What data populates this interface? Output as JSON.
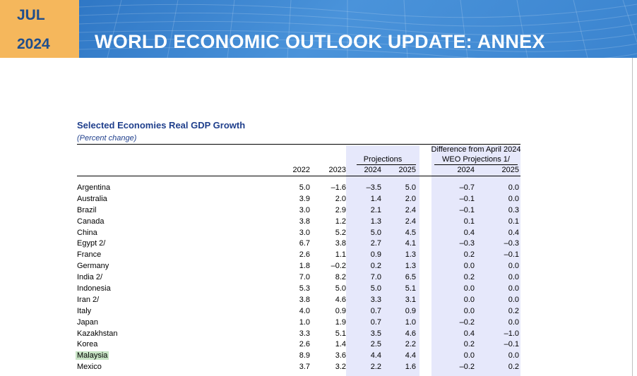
{
  "header": {
    "month": "JUL",
    "year": "2024",
    "title": "WORLD ECONOMIC OUTLOOK UPDATE: ANNEX"
  },
  "table": {
    "title": "Selected Economies Real GDP Growth",
    "subtitle": "(Percent change)",
    "projections_label": "Projections",
    "diff_label_line1": "Difference from April 2024",
    "diff_label_line2": "WEO Projections 1/",
    "columns": [
      "2022",
      "2023",
      "2024",
      "2025",
      "2024",
      "2025"
    ],
    "rows": [
      {
        "country": "Argentina",
        "v": [
          "5.0",
          "–1.6",
          "–3.5",
          "5.0",
          "–0.7",
          "0.0"
        ]
      },
      {
        "country": "Australia",
        "v": [
          "3.9",
          "2.0",
          "1.4",
          "2.0",
          "–0.1",
          "0.0"
        ]
      },
      {
        "country": "Brazil",
        "v": [
          "3.0",
          "2.9",
          "2.1",
          "2.4",
          "–0.1",
          "0.3"
        ]
      },
      {
        "country": "Canada",
        "v": [
          "3.8",
          "1.2",
          "1.3",
          "2.4",
          "0.1",
          "0.1"
        ]
      },
      {
        "country": "China",
        "v": [
          "3.0",
          "5.2",
          "5.0",
          "4.5",
          "0.4",
          "0.4"
        ]
      },
      {
        "country": "Egypt 2/",
        "v": [
          "6.7",
          "3.8",
          "2.7",
          "4.1",
          "–0.3",
          "–0.3"
        ]
      },
      {
        "country": "France",
        "v": [
          "2.6",
          "1.1",
          "0.9",
          "1.3",
          "0.2",
          "–0.1"
        ]
      },
      {
        "country": "Germany",
        "v": [
          "1.8",
          "–0.2",
          "0.2",
          "1.3",
          "0.0",
          "0.0"
        ]
      },
      {
        "country": "India 2/",
        "v": [
          "7.0",
          "8.2",
          "7.0",
          "6.5",
          "0.2",
          "0.0"
        ]
      },
      {
        "country": "Indonesia",
        "v": [
          "5.3",
          "5.0",
          "5.0",
          "5.1",
          "0.0",
          "0.0"
        ]
      },
      {
        "country": "Iran 2/",
        "v": [
          "3.8",
          "4.6",
          "3.3",
          "3.1",
          "0.0",
          "0.0"
        ]
      },
      {
        "country": "Italy",
        "v": [
          "4.0",
          "0.9",
          "0.7",
          "0.9",
          "0.0",
          "0.2"
        ]
      },
      {
        "country": "Japan",
        "v": [
          "1.0",
          "1.9",
          "0.7",
          "1.0",
          "–0.2",
          "0.0"
        ]
      },
      {
        "country": "Kazakhstan",
        "v": [
          "3.3",
          "5.1",
          "3.5",
          "4.6",
          "0.4",
          "–1.0"
        ]
      },
      {
        "country": "Korea",
        "v": [
          "2.6",
          "1.4",
          "2.5",
          "2.2",
          "0.2",
          "–0.1"
        ]
      },
      {
        "country": "Malaysia",
        "v": [
          "8.9",
          "3.6",
          "4.4",
          "4.4",
          "0.0",
          "0.0"
        ],
        "highlight": true
      },
      {
        "country": "Mexico",
        "v": [
          "3.7",
          "3.2",
          "2.2",
          "1.6",
          "–0.2",
          "0.2"
        ]
      }
    ]
  },
  "colors": {
    "banner_blue": "#3b84cf",
    "badge_orange": "#f5b75c",
    "title_blue": "#1f3f8c",
    "shade": "#e6e8fb",
    "highlight_green": "#c7e3c4"
  }
}
